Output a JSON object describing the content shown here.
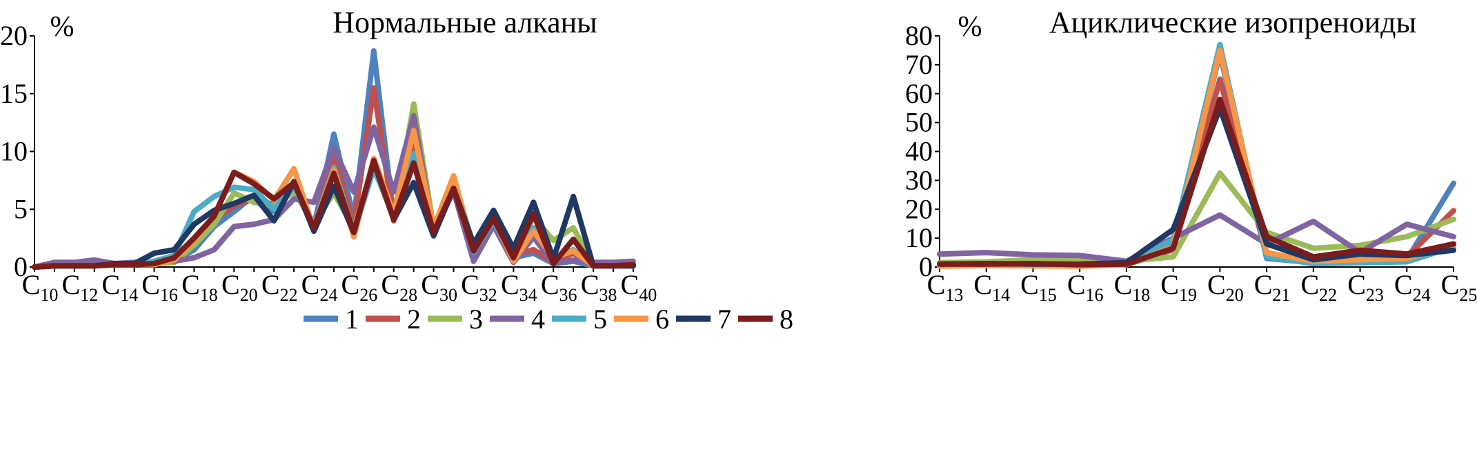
{
  "chart_data": [
    {
      "type": "line",
      "title": "Нормальные алканы",
      "ylabel": "%",
      "ylim": [
        0,
        20
      ],
      "yticks": [
        0,
        5,
        10,
        15,
        20
      ],
      "xticks": [
        {
          "base": "C",
          "sub": "10"
        },
        {
          "base": "C",
          "sub": "12"
        },
        {
          "base": "C",
          "sub": "14"
        },
        {
          "base": "C",
          "sub": "16"
        },
        {
          "base": "C",
          "sub": "18"
        },
        {
          "base": "C",
          "sub": "20"
        },
        {
          "base": "C",
          "sub": "22"
        },
        {
          "base": "C",
          "sub": "24"
        },
        {
          "base": "C",
          "sub": "26"
        },
        {
          "base": "C",
          "sub": "28"
        },
        {
          "base": "C",
          "sub": "30"
        },
        {
          "base": "C",
          "sub": "32"
        },
        {
          "base": "C",
          "sub": "34"
        },
        {
          "base": "C",
          "sub": "36"
        },
        {
          "base": "C",
          "sub": "38"
        },
        {
          "base": "C",
          "sub": "40"
        }
      ],
      "x": [
        "C10",
        "C11",
        "C12",
        "C13",
        "C14",
        "C15",
        "C16",
        "C17",
        "C18",
        "C19",
        "C20",
        "C21",
        "C22",
        "C23",
        "C24",
        "C25",
        "C26",
        "C27",
        "C28",
        "C29",
        "C30",
        "C31",
        "C32",
        "C33",
        "C34",
        "C35",
        "C36",
        "C37",
        "C38",
        "C39",
        "C40"
      ],
      "series": [
        {
          "name": "1",
          "color": "#4f81bd",
          "values": [
            0,
            0.1,
            0.1,
            0.1,
            0.2,
            0.2,
            0.3,
            0.5,
            1.5,
            3.5,
            4.8,
            6.2,
            4.8,
            6.8,
            3.5,
            11.5,
            4.2,
            18.7,
            4.3,
            10.2,
            3.1,
            7.5,
            1.0,
            4.1,
            0.8,
            1.2,
            0.3,
            0.5,
            0.1,
            0.1,
            0.1
          ]
        },
        {
          "name": "2",
          "color": "#c0504d",
          "values": [
            0,
            0.1,
            0.1,
            0.1,
            0.2,
            0.2,
            0.3,
            0.7,
            2.2,
            4.1,
            5.3,
            5.9,
            5.4,
            7.1,
            3.4,
            9.8,
            3.7,
            15.5,
            4.0,
            10.5,
            2.9,
            7.3,
            1.1,
            3.8,
            1.0,
            1.5,
            0.4,
            1.2,
            0.1,
            0.1,
            0.2
          ]
        },
        {
          "name": "3",
          "color": "#9bbb59",
          "values": [
            0,
            0.1,
            0.1,
            0.1,
            0.2,
            0.2,
            0.3,
            0.4,
            1.9,
            3.7,
            6.4,
            5.6,
            5.3,
            6.5,
            3.8,
            6.4,
            3.4,
            8.7,
            4.2,
            14.1,
            3.4,
            7.6,
            1.8,
            4.7,
            0.8,
            4.3,
            2.3,
            3.4,
            0.2,
            0.1,
            0.1
          ]
        },
        {
          "name": "4",
          "color": "#8064a2",
          "values": [
            0,
            0.4,
            0.4,
            0.6,
            0.3,
            0.4,
            0.4,
            0.5,
            0.8,
            1.5,
            3.5,
            3.7,
            4.1,
            5.9,
            5.6,
            10.3,
            6.5,
            12.1,
            6.5,
            13.1,
            3.0,
            6.6,
            0.5,
            3.6,
            0.4,
            2.6,
            0.3,
            0.6,
            0.4,
            0.4,
            0.5
          ]
        },
        {
          "name": "5",
          "color": "#4bacc6",
          "values": [
            0,
            0.1,
            0.1,
            0.1,
            0.2,
            0.2,
            0.5,
            1.0,
            4.8,
            6.1,
            6.9,
            6.7,
            5.0,
            7.0,
            3.6,
            8.6,
            3.0,
            8.5,
            4.4,
            9.8,
            3.2,
            7.5,
            1.3,
            4.0,
            0.7,
            3.4,
            0.7,
            1.5,
            0.1,
            0.1,
            0.1
          ]
        },
        {
          "name": "6",
          "color": "#f79646",
          "values": [
            0,
            0.1,
            0.1,
            0.1,
            0.2,
            0.2,
            0.2,
            0.6,
            2.3,
            4.4,
            8.2,
            7.4,
            5.8,
            8.5,
            3.3,
            8.4,
            2.6,
            9.4,
            4.6,
            11.8,
            3.4,
            7.9,
            1.6,
            4.3,
            0.5,
            3.1,
            0.8,
            1.4,
            0.1,
            0.1,
            0.2
          ]
        },
        {
          "name": "7",
          "color": "#1f3864",
          "values": [
            0,
            0.1,
            0.1,
            0.1,
            0.3,
            0.3,
            1.2,
            1.5,
            3.7,
            4.9,
            5.5,
            6.2,
            4.0,
            7.4,
            3.1,
            7.0,
            3.0,
            9.1,
            4.1,
            7.3,
            2.7,
            6.8,
            2.0,
            4.9,
            1.6,
            5.6,
            0.7,
            6.1,
            0.1,
            0.1,
            0.1
          ]
        },
        {
          "name": "8",
          "color": "#7a1c1c",
          "values": [
            0,
            0.1,
            0.1,
            0.1,
            0.2,
            0.2,
            0.3,
            0.8,
            2.5,
            4.4,
            8.2,
            7.2,
            5.9,
            7.3,
            3.4,
            8.1,
            3.0,
            9.2,
            4.1,
            9.0,
            3.0,
            6.8,
            1.4,
            4.2,
            0.8,
            4.6,
            0.3,
            2.4,
            0.1,
            0.1,
            0.2
          ]
        }
      ]
    },
    {
      "type": "line",
      "title": "Ациклические изопреноиды",
      "ylabel": "%",
      "ylim": [
        0,
        80
      ],
      "yticks": [
        0,
        10,
        20,
        30,
        40,
        50,
        60,
        70,
        80
      ],
      "xticks": [
        {
          "base": "C",
          "sub": "13"
        },
        {
          "base": "C",
          "sub": "14"
        },
        {
          "base": "C",
          "sub": "15"
        },
        {
          "base": "C",
          "sub": "16"
        },
        {
          "base": "C",
          "sub": "18"
        },
        {
          "base": "C",
          "sub": "19"
        },
        {
          "base": "C",
          "sub": "20"
        },
        {
          "base": "C",
          "sub": "21"
        },
        {
          "base": "C",
          "sub": "22"
        },
        {
          "base": "C",
          "sub": "23"
        },
        {
          "base": "C",
          "sub": "24"
        },
        {
          "base": "C",
          "sub": "25"
        }
      ],
      "x": [
        "C13",
        "C14",
        "C15",
        "C16",
        "C18",
        "C19",
        "C20",
        "C21",
        "C22",
        "C23",
        "C24",
        "C25"
      ],
      "series": [
        {
          "name": "1",
          "color": "#4f81bd",
          "values": [
            1.0,
            1.0,
            0.8,
            0.5,
            0.8,
            8.0,
            74.0,
            3.0,
            1.5,
            1.8,
            2.5,
            29.0
          ]
        },
        {
          "name": "2",
          "color": "#c0504d",
          "values": [
            1.0,
            1.0,
            0.8,
            0.5,
            0.8,
            6.0,
            65.0,
            4.0,
            2.0,
            2.5,
            3.5,
            19.5
          ]
        },
        {
          "name": "3",
          "color": "#9bbb59",
          "values": [
            1.5,
            1.8,
            2.5,
            3.0,
            2.0,
            3.5,
            32.5,
            12.0,
            6.5,
            7.5,
            10.5,
            16.5
          ]
        },
        {
          "name": "4",
          "color": "#8064a2",
          "values": [
            4.5,
            5.0,
            4.2,
            4.0,
            2.0,
            10.0,
            18.0,
            8.0,
            15.8,
            5.0,
            14.8,
            10.5
          ]
        },
        {
          "name": "5",
          "color": "#4bacc6",
          "values": [
            0.5,
            0.6,
            0.6,
            0.5,
            0.8,
            9.5,
            77.0,
            3.5,
            1.2,
            1.5,
            1.8,
            7.0
          ]
        },
        {
          "name": "6",
          "color": "#f79646",
          "values": [
            0.3,
            0.5,
            0.4,
            0.3,
            0.8,
            7.0,
            75.0,
            5.0,
            2.0,
            2.5,
            3.0,
            7.5
          ]
        },
        {
          "name": "7",
          "color": "#1f3864",
          "values": [
            1.0,
            1.2,
            1.0,
            1.0,
            1.5,
            13.0,
            55.0,
            8.0,
            2.5,
            4.5,
            4.0,
            5.8
          ]
        },
        {
          "name": "8",
          "color": "#7a1c1c",
          "values": [
            1.0,
            1.0,
            1.2,
            0.8,
            1.0,
            6.5,
            58.0,
            10.5,
            3.5,
            5.8,
            4.5,
            8.0
          ]
        }
      ]
    }
  ],
  "legend": [
    {
      "label": "1",
      "color": "#4f81bd"
    },
    {
      "label": "2",
      "color": "#c0504d"
    },
    {
      "label": "3",
      "color": "#9bbb59"
    },
    {
      "label": "4",
      "color": "#8064a2"
    },
    {
      "label": "5",
      "color": "#4bacc6"
    },
    {
      "label": "6",
      "color": "#f79646"
    },
    {
      "label": "7",
      "color": "#1f3864"
    },
    {
      "label": "8",
      "color": "#7a1c1c"
    }
  ]
}
